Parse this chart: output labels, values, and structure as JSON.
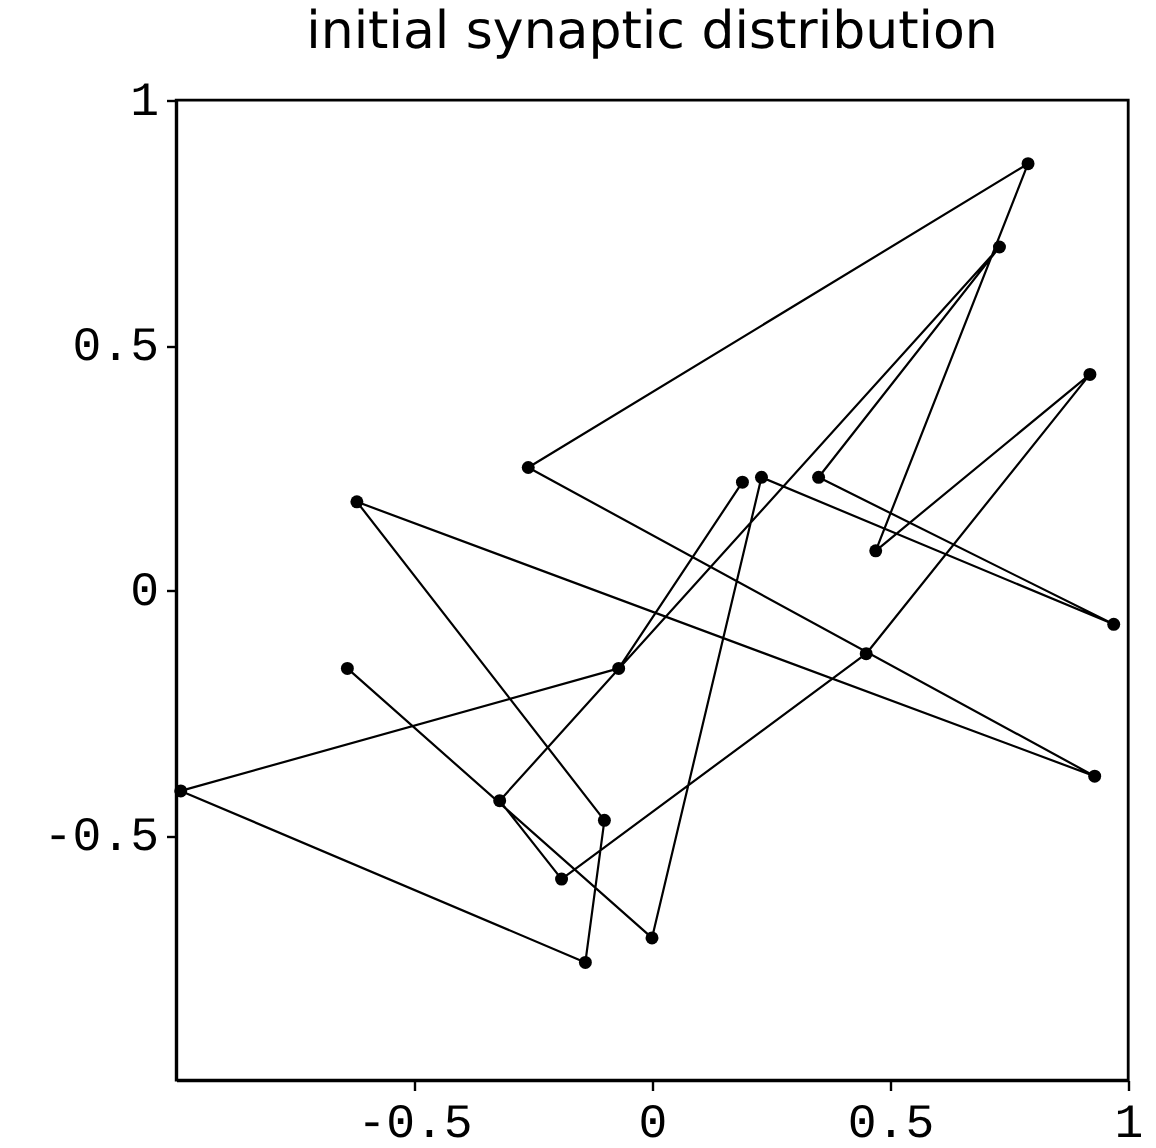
{
  "chart_data": {
    "type": "line",
    "title": "initial synaptic distribution",
    "x": [
      -0.64,
      0.0,
      0.23,
      0.97,
      0.35,
      0.73,
      -0.32,
      -0.19,
      0.45,
      0.92,
      0.47,
      0.79,
      -0.26,
      0.93,
      -0.62,
      -0.1,
      -0.14,
      -0.99,
      -0.07,
      0.19
    ],
    "series": [
      {
        "color": "#000000",
        "values": [
          -0.16,
          -0.71,
          0.23,
          -0.07,
          0.23,
          0.7,
          -0.43,
          -0.59,
          -0.13,
          0.44,
          0.08,
          0.87,
          0.25,
          -0.38,
          0.18,
          -0.47,
          -0.76,
          -0.41,
          -0.16,
          0.22
        ]
      }
    ],
    "xlim": [
      -1,
      1
    ],
    "ylim": [
      -1,
      1
    ],
    "xticks": [
      -0.5,
      0,
      0.5,
      1
    ],
    "yticks": [
      -0.5,
      0,
      0.5,
      1
    ],
    "grid": false,
    "marker": "circle"
  }
}
